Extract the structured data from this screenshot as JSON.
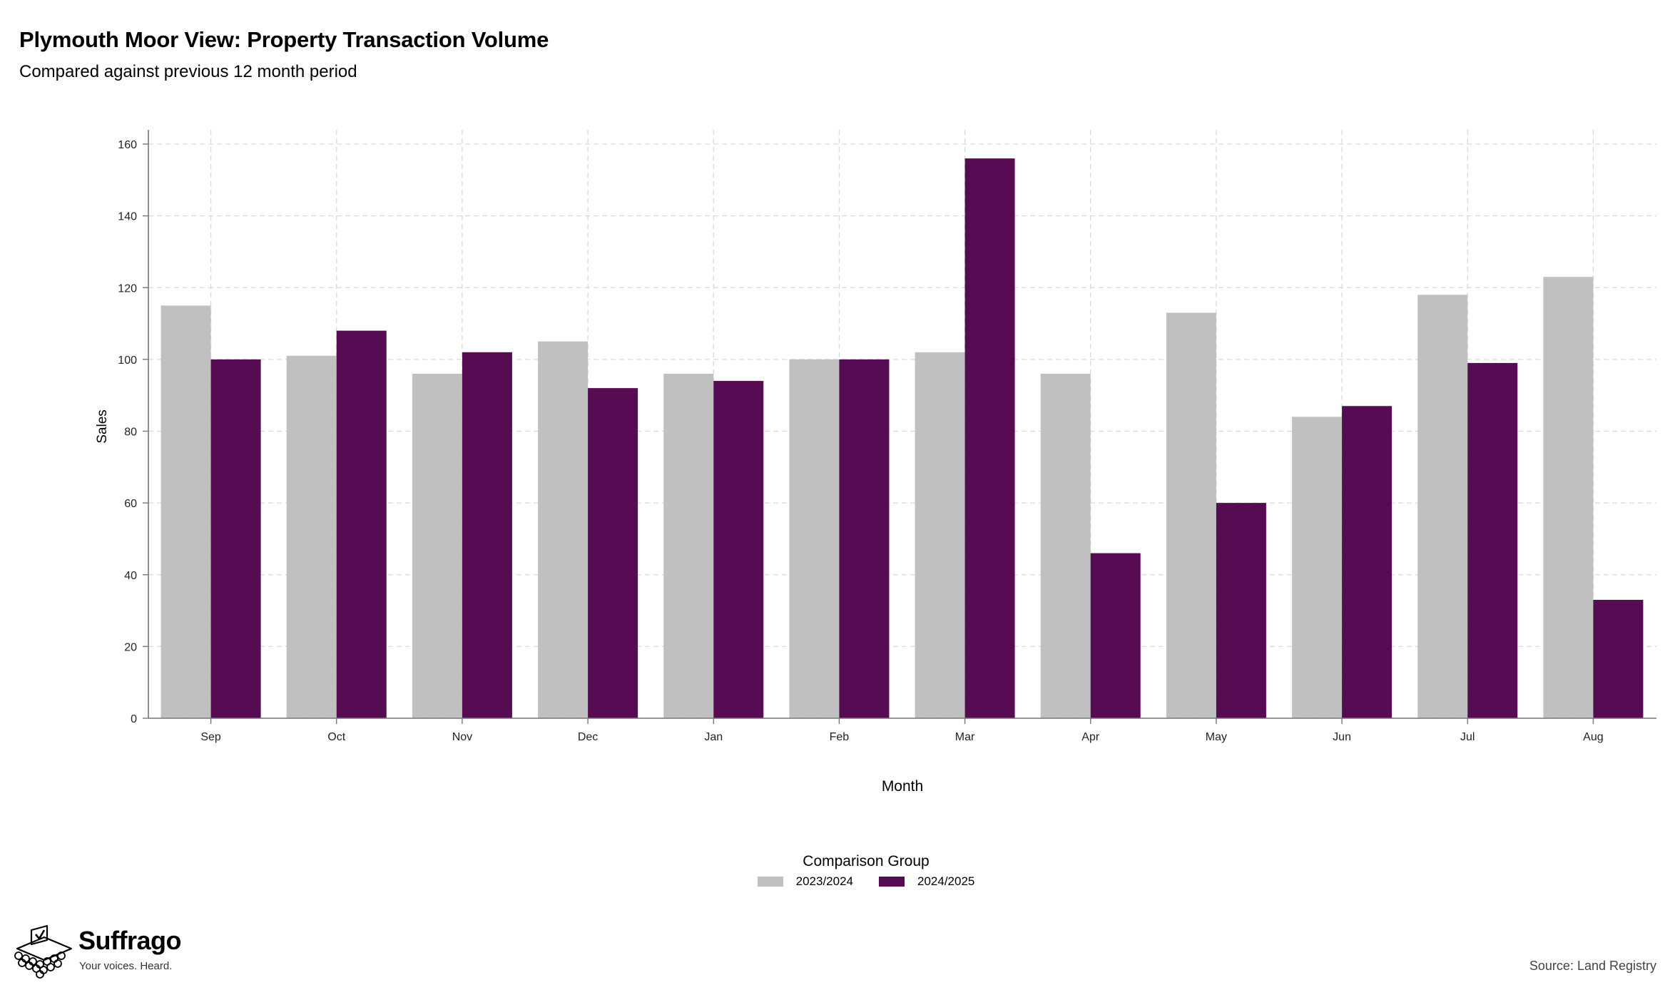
{
  "title": "Plymouth Moor View: Property Transaction Volume",
  "subtitle": "Compared against previous 12 month period",
  "source": "Source: Land Registry",
  "brand": {
    "name": "Suffrago",
    "tagline": "Your voices. Heard."
  },
  "legend": {
    "title": "Comparison Group",
    "placement": "bottom-center"
  },
  "colors": {
    "series_2023_2024": "#c0c0c0",
    "series_2024_2025": "#560b52",
    "grid": "#d9d9d9",
    "axis": "#777777"
  },
  "chart_data": {
    "type": "bar",
    "title": "Plymouth Moor View: Property Transaction Volume",
    "subtitle": "Compared against previous 12 month period",
    "xlabel": "Month",
    "ylabel": "Sales",
    "ylim": [
      0,
      160
    ],
    "yticks": [
      0,
      20,
      40,
      60,
      80,
      100,
      120,
      140,
      160
    ],
    "grid": true,
    "categories": [
      "Sep",
      "Oct",
      "Nov",
      "Dec",
      "Jan",
      "Feb",
      "Mar",
      "Apr",
      "May",
      "Jun",
      "Jul",
      "Aug"
    ],
    "series": [
      {
        "name": "2023/2024",
        "color": "#c0c0c0",
        "values": [
          115,
          101,
          96,
          105,
          96,
          100,
          102,
          96,
          113,
          84,
          118,
          123
        ]
      },
      {
        "name": "2024/2025",
        "color": "#560b52",
        "values": [
          100,
          108,
          102,
          92,
          94,
          100,
          156,
          46,
          60,
          87,
          99,
          33
        ]
      }
    ]
  }
}
